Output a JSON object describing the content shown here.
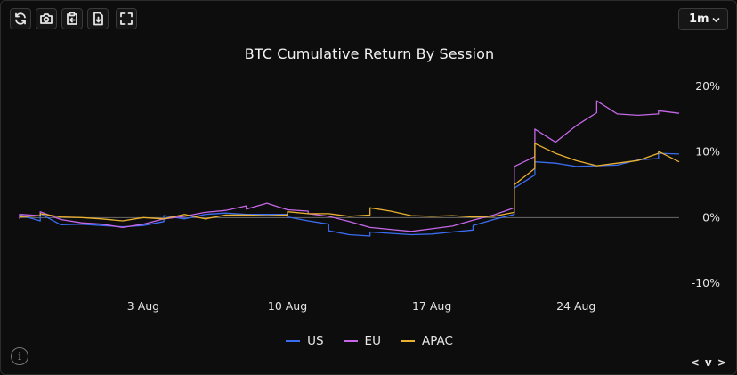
{
  "toolbar": {
    "buttons": [
      {
        "name": "refresh-icon",
        "label": "Refresh"
      },
      {
        "name": "camera-icon",
        "label": "Screenshot"
      },
      {
        "name": "clipboard-icon",
        "label": "Copy"
      },
      {
        "name": "download-icon",
        "label": "Download"
      },
      {
        "name": "fullscreen-icon",
        "label": "Fullscreen"
      }
    ],
    "range_value": "1m"
  },
  "footer": {
    "info_glyph": "i",
    "nav_label": "< v >"
  },
  "chart_data": {
    "type": "line",
    "title": "BTC Cumulative Return By Session",
    "xlabel": "",
    "ylabel": "",
    "y_axis_position": "right",
    "ylim": [
      -10,
      20
    ],
    "y_ticks": [
      -10,
      0,
      10,
      20
    ],
    "y_tick_labels": [
      "-10%",
      "0%",
      "10%",
      "20%"
    ],
    "x_range": [
      "2025-07-28",
      "2025-08-29"
    ],
    "x_ticks": [
      "2025-08-03",
      "2025-08-10",
      "2025-08-17",
      "2025-08-24"
    ],
    "x_tick_labels": [
      "3 Aug",
      "10 Aug",
      "17 Aug",
      "24 Aug"
    ],
    "zero_line": true,
    "grid": false,
    "legend_position": "bottom",
    "series": [
      {
        "name": "US",
        "color": "#3a6df0",
        "points": [
          [
            "2025-07-28",
            0.0
          ],
          [
            "2025-07-28",
            0.4
          ],
          [
            "2025-07-29",
            -0.5
          ],
          [
            "2025-07-29",
            0.6
          ],
          [
            "2025-07-30",
            -1.1
          ],
          [
            "2025-07-31",
            -1.0
          ],
          [
            "2025-08-01",
            -1.2
          ],
          [
            "2025-08-02",
            -1.4
          ],
          [
            "2025-08-03",
            -1.2
          ],
          [
            "2025-08-04",
            -0.6
          ],
          [
            "2025-08-04",
            0.3
          ],
          [
            "2025-08-05",
            -0.2
          ],
          [
            "2025-08-06",
            0.5
          ],
          [
            "2025-08-07",
            0.7
          ],
          [
            "2025-08-08",
            0.5
          ],
          [
            "2025-08-09",
            0.5
          ],
          [
            "2025-08-10",
            0.5
          ],
          [
            "2025-08-10",
            0.1
          ],
          [
            "2025-08-11",
            -0.5
          ],
          [
            "2025-08-12",
            -1.0
          ],
          [
            "2025-08-12",
            -2.0
          ],
          [
            "2025-08-13",
            -2.6
          ],
          [
            "2025-08-14",
            -2.8
          ],
          [
            "2025-08-14",
            -2.2
          ],
          [
            "2025-08-15",
            -2.4
          ],
          [
            "2025-08-16",
            -2.6
          ],
          [
            "2025-08-17",
            -2.5
          ],
          [
            "2025-08-18",
            -2.2
          ],
          [
            "2025-08-19",
            -1.9
          ],
          [
            "2025-08-19",
            -1.2
          ],
          [
            "2025-08-20",
            -0.3
          ],
          [
            "2025-08-21",
            0.5
          ],
          [
            "2025-08-21",
            4.5
          ],
          [
            "2025-08-22",
            6.5
          ],
          [
            "2025-08-22",
            8.5
          ],
          [
            "2025-08-23",
            8.3
          ],
          [
            "2025-08-24",
            7.8
          ],
          [
            "2025-08-25",
            7.9
          ],
          [
            "2025-08-26",
            8.0
          ],
          [
            "2025-08-27",
            8.8
          ],
          [
            "2025-08-28",
            9.0
          ],
          [
            "2025-08-28",
            9.8
          ],
          [
            "2025-08-29",
            9.7
          ]
        ]
      },
      {
        "name": "EU",
        "color": "#c567e8",
        "points": [
          [
            "2025-07-28",
            -0.2
          ],
          [
            "2025-07-28",
            0.5
          ],
          [
            "2025-07-29",
            0.3
          ],
          [
            "2025-07-29",
            0.9
          ],
          [
            "2025-07-30",
            -0.3
          ],
          [
            "2025-07-31",
            -0.8
          ],
          [
            "2025-08-01",
            -1.0
          ],
          [
            "2025-08-02",
            -1.5
          ],
          [
            "2025-08-03",
            -1.0
          ],
          [
            "2025-08-04",
            -0.2
          ],
          [
            "2025-08-05",
            0.2
          ],
          [
            "2025-08-06",
            0.8
          ],
          [
            "2025-08-07",
            1.1
          ],
          [
            "2025-08-08",
            1.8
          ],
          [
            "2025-08-08",
            1.3
          ],
          [
            "2025-08-09",
            2.2
          ],
          [
            "2025-08-10",
            1.2
          ],
          [
            "2025-08-11",
            1.0
          ],
          [
            "2025-08-11",
            0.6
          ],
          [
            "2025-08-12",
            0.2
          ],
          [
            "2025-08-13",
            -0.6
          ],
          [
            "2025-08-14",
            -1.5
          ],
          [
            "2025-08-15",
            -1.8
          ],
          [
            "2025-08-16",
            -2.1
          ],
          [
            "2025-08-17",
            -1.7
          ],
          [
            "2025-08-18",
            -1.3
          ],
          [
            "2025-08-19",
            -0.4
          ],
          [
            "2025-08-20",
            0.4
          ],
          [
            "2025-08-21",
            1.5
          ],
          [
            "2025-08-21",
            7.8
          ],
          [
            "2025-08-22",
            9.3
          ],
          [
            "2025-08-22",
            13.5
          ],
          [
            "2025-08-23",
            11.5
          ],
          [
            "2025-08-24",
            14.0
          ],
          [
            "2025-08-25",
            16.0
          ],
          [
            "2025-08-25",
            17.8
          ],
          [
            "2025-08-26",
            15.8
          ],
          [
            "2025-08-27",
            15.6
          ],
          [
            "2025-08-28",
            15.8
          ],
          [
            "2025-08-28",
            16.3
          ],
          [
            "2025-08-29",
            15.9
          ]
        ]
      },
      {
        "name": "APAC",
        "color": "#e9b130",
        "points": [
          [
            "2025-07-28",
            0.1
          ],
          [
            "2025-07-29",
            0.3
          ],
          [
            "2025-07-29",
            0.6
          ],
          [
            "2025-07-30",
            0.1
          ],
          [
            "2025-07-31",
            0.0
          ],
          [
            "2025-08-01",
            -0.2
          ],
          [
            "2025-08-02",
            -0.5
          ],
          [
            "2025-08-03",
            0.0
          ],
          [
            "2025-08-04",
            -0.2
          ],
          [
            "2025-08-05",
            0.5
          ],
          [
            "2025-08-06",
            -0.2
          ],
          [
            "2025-08-07",
            0.4
          ],
          [
            "2025-08-08",
            0.4
          ],
          [
            "2025-08-09",
            0.3
          ],
          [
            "2025-08-10",
            0.4
          ],
          [
            "2025-08-10",
            0.9
          ],
          [
            "2025-08-11",
            0.6
          ],
          [
            "2025-08-12",
            0.6
          ],
          [
            "2025-08-13",
            0.2
          ],
          [
            "2025-08-14",
            0.4
          ],
          [
            "2025-08-14",
            1.5
          ],
          [
            "2025-08-15",
            1.0
          ],
          [
            "2025-08-16",
            0.3
          ],
          [
            "2025-08-17",
            0.2
          ],
          [
            "2025-08-18",
            0.3
          ],
          [
            "2025-08-19",
            0.1
          ],
          [
            "2025-08-20",
            0.2
          ],
          [
            "2025-08-21",
            0.8
          ],
          [
            "2025-08-21",
            5.0
          ],
          [
            "2025-08-22",
            7.5
          ],
          [
            "2025-08-22",
            11.3
          ],
          [
            "2025-08-23",
            9.8
          ],
          [
            "2025-08-24",
            8.7
          ],
          [
            "2025-08-25",
            7.9
          ],
          [
            "2025-08-26",
            8.3
          ],
          [
            "2025-08-27",
            8.7
          ],
          [
            "2025-08-28",
            9.8
          ],
          [
            "2025-08-28",
            10.1
          ],
          [
            "2025-08-29",
            8.5
          ]
        ]
      }
    ]
  }
}
